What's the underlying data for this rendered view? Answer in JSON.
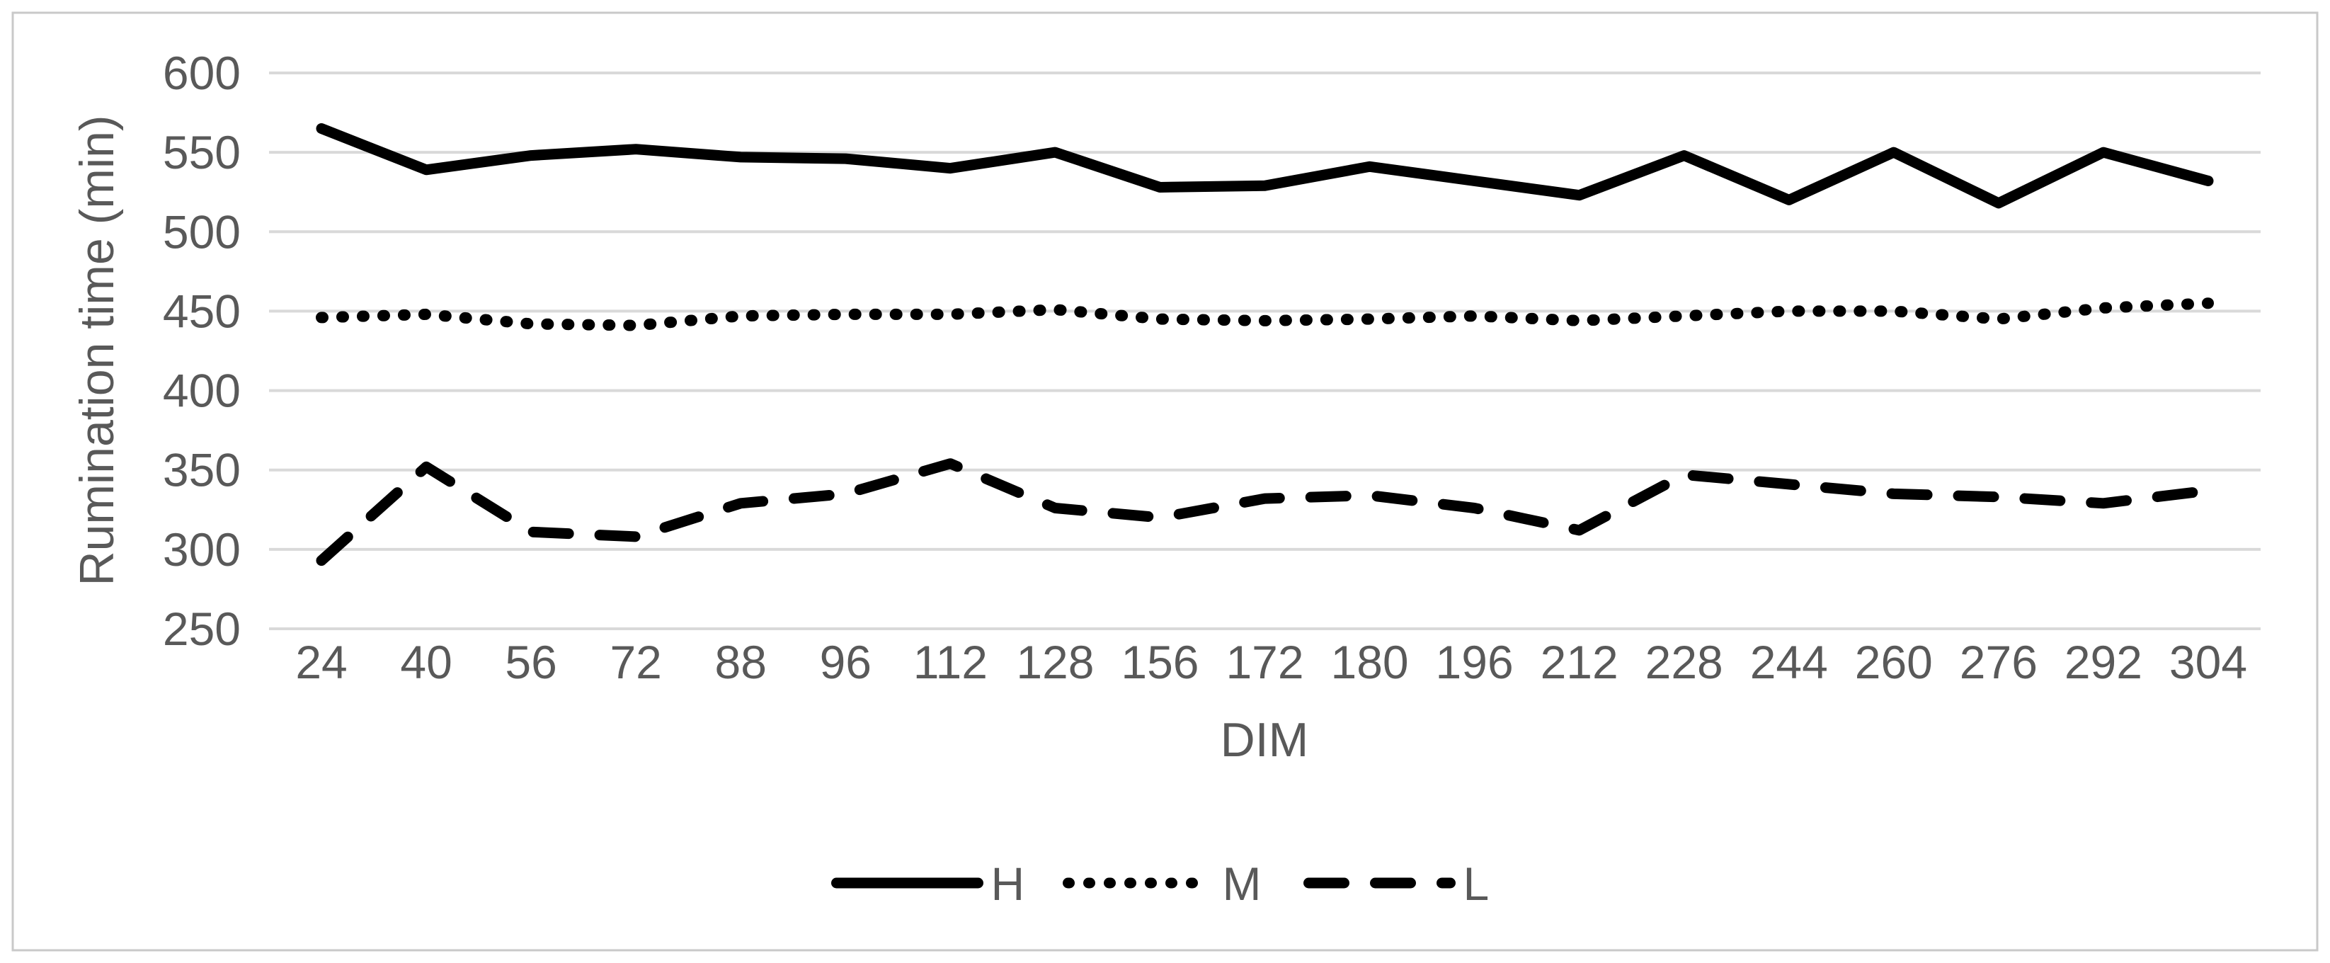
{
  "chart_data": {
    "type": "line",
    "title": "",
    "xlabel": "DIM",
    "ylabel": "Rumination time (min)",
    "x": [
      24,
      40,
      56,
      72,
      88,
      96,
      112,
      128,
      156,
      172,
      180,
      196,
      212,
      228,
      244,
      260,
      276,
      292,
      304
    ],
    "x_tick_labels": [
      "24",
      "40",
      "56",
      "72",
      "88",
      "96",
      "112",
      "128",
      "156",
      "172",
      "180",
      "196",
      "212",
      "228",
      "244",
      "260",
      "276",
      "292",
      "304"
    ],
    "series": [
      {
        "name": "H",
        "line_style": "solid",
        "values": [
          565,
          539,
          548,
          552,
          547,
          546,
          540,
          550,
          528,
          529,
          541,
          532,
          523,
          548,
          520,
          550,
          518,
          550,
          532
        ]
      },
      {
        "name": "M",
        "line_style": "dotted",
        "values": [
          446,
          448,
          442,
          441,
          447,
          448,
          448,
          451,
          445,
          444,
          445,
          447,
          444,
          447,
          450,
          450,
          445,
          452,
          455
        ]
      },
      {
        "name": "L",
        "line_style": "dashed",
        "values": [
          293,
          352,
          311,
          308,
          329,
          335,
          354,
          326,
          320,
          332,
          334,
          326,
          312,
          347,
          341,
          335,
          333,
          329,
          337
        ]
      }
    ],
    "ylim": [
      250,
      600
    ],
    "ytick_step": 50,
    "y_tick_labels": [
      "600",
      "550",
      "500",
      "450",
      "400",
      "350",
      "300",
      "250"
    ],
    "grid": "horizontal-only",
    "legend_position": "bottom-center"
  },
  "legend": {
    "items": [
      {
        "label": "H",
        "style": "solid"
      },
      {
        "label": "M",
        "style": "dotted"
      },
      {
        "label": "L",
        "style": "dashed"
      }
    ]
  },
  "colors": {
    "series_line": "#000000",
    "axis_text": "#595959",
    "gridline": "#d9d9d9",
    "chart_border": "#c9c9c9",
    "background": "#ffffff"
  }
}
